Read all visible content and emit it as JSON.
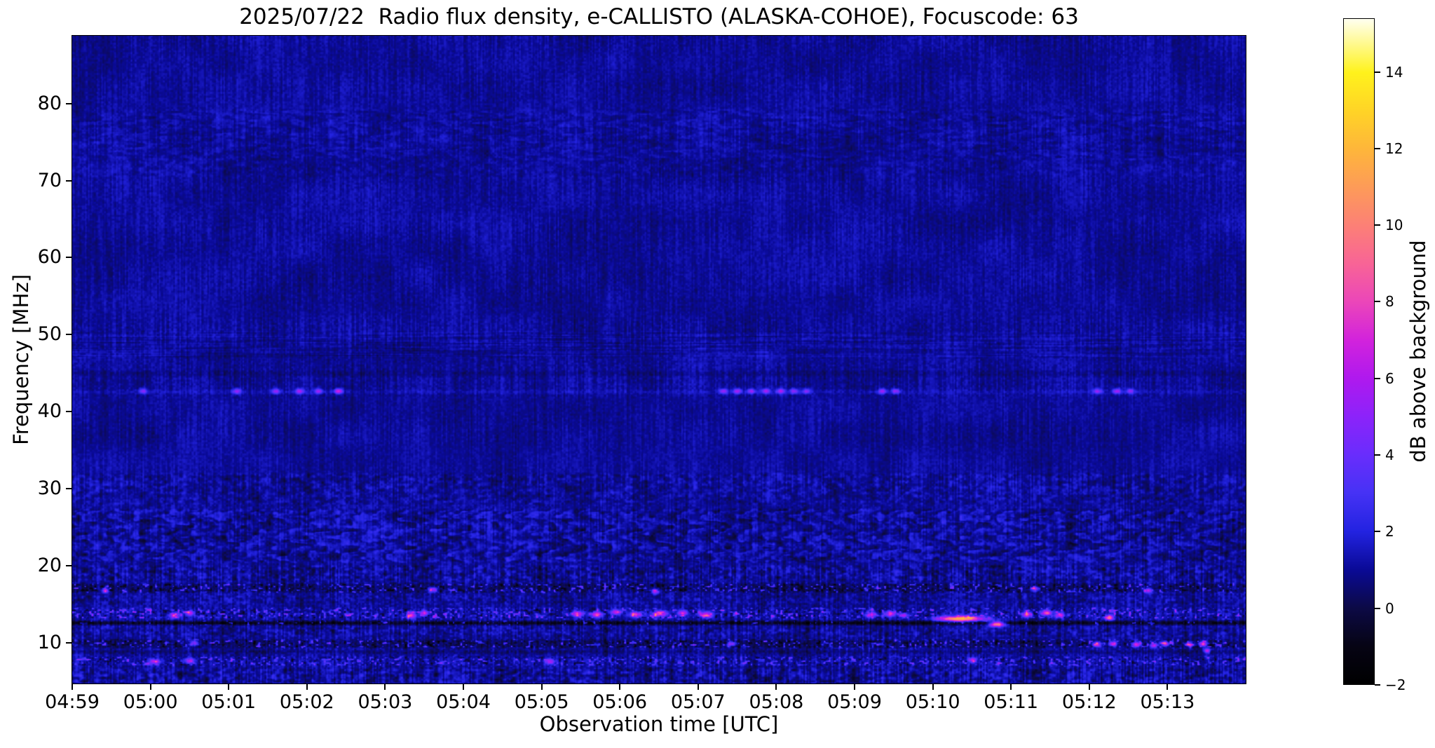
{
  "chart_data": {
    "type": "heatmap",
    "title": "2025/07/22  Radio flux density, e-CALLISTO (ALASKA-COHOE), Focuscode: 63",
    "xlabel": "Observation time [UTC]",
    "ylabel": "Frequency [MHz]",
    "x_tick_labels": [
      "04:59",
      "05:00",
      "05:01",
      "05:02",
      "05:03",
      "05:04",
      "05:05",
      "05:06",
      "05:07",
      "05:08",
      "05:09",
      "05:10",
      "05:11",
      "05:12",
      "05:13"
    ],
    "x_span_minutes": 15,
    "y_tick_values": [
      10,
      20,
      30,
      40,
      50,
      60,
      70,
      80
    ],
    "y_range_mhz": [
      4.7,
      88.8
    ],
    "grid": false,
    "colorbar": {
      "label": "dB above background",
      "position": "right",
      "tick_values": [
        -2,
        0,
        2,
        4,
        6,
        8,
        10,
        12,
        14
      ],
      "tick_labels": [
        "−2",
        "0",
        "2",
        "4",
        "6",
        "8",
        "10",
        "12",
        "14"
      ],
      "value_range": [
        -2,
        15.4
      ],
      "colormap_stops": [
        {
          "v": -2,
          "c": "#000000"
        },
        {
          "v": -1,
          "c": "#060414"
        },
        {
          "v": 0,
          "c": "#0c0a46"
        },
        {
          "v": 1,
          "c": "#0a0a96"
        },
        {
          "v": 2,
          "c": "#2323e1"
        },
        {
          "v": 3,
          "c": "#4632f5"
        },
        {
          "v": 4,
          "c": "#692dfc"
        },
        {
          "v": 5,
          "c": "#8c23fa"
        },
        {
          "v": 6,
          "c": "#af19ee"
        },
        {
          "v": 7,
          "c": "#d223dc"
        },
        {
          "v": 8,
          "c": "#eb46b9"
        },
        {
          "v": 9,
          "c": "#f86496"
        },
        {
          "v": 10,
          "c": "#fc8076"
        },
        {
          "v": 11,
          "c": "#fd9b58"
        },
        {
          "v": 12,
          "c": "#feb63a"
        },
        {
          "v": 13,
          "c": "#ffd426"
        },
        {
          "v": 14,
          "c": "#fff21c"
        },
        {
          "v": 15.4,
          "c": "#fffff0"
        }
      ]
    },
    "noise": {
      "base_db": 1.05,
      "streak_amp": 0.42,
      "grain_amp": 0.38,
      "blotch_amp": 0.3
    },
    "bands": [
      {
        "f0": 72.5,
        "f1": 79.5,
        "style": "waves",
        "amp": 0.5
      },
      {
        "f0": 70.3,
        "f1": 73.0,
        "style": "checker",
        "amp": 0.45
      },
      {
        "f0": 46.8,
        "f1": 50.6,
        "style": "rows",
        "amp": 0.5
      },
      {
        "f0": 44.5,
        "f1": 45.5,
        "style": "dark",
        "amp": 0.3
      },
      {
        "f0": 42.2,
        "f1": 43.0,
        "style": "line",
        "amp": 0.4
      },
      {
        "f0": 27.8,
        "f1": 32.2,
        "style": "mottle",
        "amp": 0.6
      },
      {
        "f0": 20.3,
        "f1": 27.6,
        "style": "zigzag",
        "amp": 0.9
      },
      {
        "f0": 17.9,
        "f1": 20.3,
        "style": "mottle",
        "amp": 0.75
      },
      {
        "f0": 16.4,
        "f1": 17.9,
        "style": "speckle-dark",
        "amp": 1.0
      },
      {
        "f0": 14.8,
        "f1": 16.4,
        "style": "mottle",
        "amp": 0.55
      },
      {
        "f0": 13.0,
        "f1": 14.7,
        "style": "speckle-bright",
        "amp": 1.0
      },
      {
        "f0": 12.2,
        "f1": 13.0,
        "style": "dark-speckle",
        "amp": 1.0
      },
      {
        "f0": 10.7,
        "f1": 12.2,
        "style": "mottle",
        "amp": 0.65
      },
      {
        "f0": 9.2,
        "f1": 10.6,
        "style": "speckle-dark",
        "amp": 1.05
      },
      {
        "f0": 8.5,
        "f1": 9.2,
        "style": "dark",
        "amp": 0.5
      },
      {
        "f0": 6.9,
        "f1": 8.4,
        "style": "speckle-bright",
        "amp": 0.8
      },
      {
        "f0": 4.6,
        "f1": 6.9,
        "style": "mottle",
        "amp": 0.85
      }
    ],
    "events_format": [
      "t_minutes_after_0459",
      "freq_mhz",
      "peak_db",
      "sigma_x_px",
      "sigma_y_px"
    ],
    "events": [
      [
        0.9,
        42.7,
        3.8,
        4,
        2.6
      ],
      [
        2.1,
        42.7,
        4.3,
        4,
        2.6
      ],
      [
        2.6,
        42.7,
        4.0,
        4,
        2.6
      ],
      [
        2.9,
        42.7,
        4.4,
        4,
        2.6
      ],
      [
        3.15,
        42.7,
        4.1,
        4,
        2.6
      ],
      [
        3.4,
        42.7,
        5.8,
        4,
        2.6
      ],
      [
        8.32,
        42.7,
        4.2,
        4,
        2.6
      ],
      [
        8.5,
        42.7,
        4.6,
        4,
        2.6
      ],
      [
        8.68,
        42.7,
        4.0,
        4,
        2.6
      ],
      [
        8.86,
        42.7,
        4.3,
        4,
        2.6
      ],
      [
        9.05,
        42.7,
        4.6,
        4,
        2.6
      ],
      [
        9.22,
        42.7,
        4.0,
        4,
        2.6
      ],
      [
        9.38,
        42.7,
        3.7,
        4,
        2.6
      ],
      [
        10.35,
        42.7,
        4.4,
        4,
        2.6
      ],
      [
        10.52,
        42.7,
        4.1,
        4,
        2.6
      ],
      [
        13.1,
        42.7,
        3.9,
        4,
        2.6
      ],
      [
        13.35,
        42.7,
        4.4,
        4,
        2.6
      ],
      [
        13.52,
        42.7,
        3.7,
        4,
        2.6
      ],
      [
        11.35,
        13.15,
        10.8,
        22,
        2.6
      ],
      [
        11.82,
        12.45,
        10.2,
        7,
        2.6
      ],
      [
        13.25,
        13.3,
        8.5,
        4,
        2.5
      ],
      [
        1.3,
        13.6,
        5.5,
        5,
        2.8
      ],
      [
        1.5,
        13.9,
        5.0,
        4,
        2.6
      ],
      [
        4.32,
        13.6,
        6.3,
        5,
        2.8
      ],
      [
        4.5,
        13.9,
        5.4,
        4,
        2.6
      ],
      [
        6.45,
        13.8,
        6.0,
        6,
        2.8
      ],
      [
        6.7,
        13.7,
        6.8,
        6,
        2.8
      ],
      [
        6.95,
        14.0,
        5.5,
        5,
        2.6
      ],
      [
        7.2,
        13.7,
        6.2,
        6,
        2.8
      ],
      [
        7.5,
        13.8,
        7.0,
        7,
        2.8
      ],
      [
        7.8,
        13.9,
        5.8,
        5,
        2.6
      ],
      [
        8.1,
        13.7,
        6.4,
        6,
        2.8
      ],
      [
        10.2,
        13.7,
        6.0,
        5,
        2.8
      ],
      [
        10.45,
        13.8,
        6.5,
        5,
        2.8
      ],
      [
        10.62,
        13.6,
        5.5,
        4,
        2.6
      ],
      [
        12.2,
        13.7,
        7.0,
        5,
        2.8
      ],
      [
        12.45,
        13.9,
        7.8,
        5,
        2.8
      ],
      [
        12.62,
        13.6,
        6.3,
        4,
        2.6
      ],
      [
        13.1,
        9.8,
        6.8,
        4,
        2.5
      ],
      [
        13.3,
        9.9,
        6.3,
        4,
        2.5
      ],
      [
        13.6,
        9.8,
        7.2,
        4,
        2.5
      ],
      [
        13.82,
        9.7,
        6.4,
        3.5,
        2.4
      ],
      [
        13.96,
        9.9,
        6.9,
        4,
        2.5
      ],
      [
        14.28,
        9.8,
        6.5,
        4,
        2.5
      ],
      [
        14.45,
        9.9,
        7.6,
        4,
        2.5
      ],
      [
        8.42,
        9.9,
        5.6,
        4,
        2.5
      ],
      [
        1.55,
        10.0,
        5.2,
        4,
        2.5
      ],
      [
        0.42,
        16.8,
        6.2,
        3.5,
        2.4
      ],
      [
        4.6,
        16.9,
        5.6,
        4,
        2.5
      ],
      [
        7.45,
        16.7,
        5.2,
        4,
        2.4
      ],
      [
        12.3,
        17.0,
        5.8,
        4,
        2.4
      ],
      [
        13.75,
        16.8,
        5.4,
        4,
        2.4
      ],
      [
        1.05,
        7.6,
        5.2,
        5,
        2.5
      ],
      [
        1.5,
        7.7,
        5.0,
        5,
        2.5
      ],
      [
        6.1,
        7.6,
        5.0,
        5,
        2.5
      ],
      [
        11.5,
        7.8,
        5.3,
        4,
        2.5
      ],
      [
        14.5,
        9.0,
        6.0,
        3,
        2.2
      ]
    ]
  }
}
